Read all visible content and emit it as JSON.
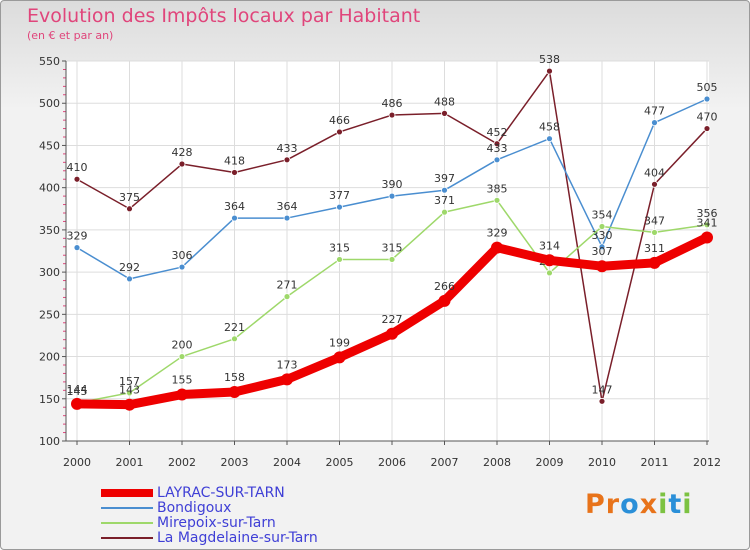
{
  "chart_data": {
    "type": "line",
    "title": "Evolution des Impôts locaux par Habitant",
    "subtitle": "(en € et par an)",
    "xlabel": "",
    "ylabel": "",
    "categories": [
      "2000",
      "2001",
      "2002",
      "2003",
      "2004",
      "2005",
      "2006",
      "2007",
      "2008",
      "2009",
      "2010",
      "2011",
      "2012"
    ],
    "ylim": [
      100,
      550
    ],
    "yticks": [
      100,
      150,
      200,
      250,
      300,
      350,
      400,
      450,
      500,
      550
    ],
    "grid": true,
    "series": [
      {
        "name": "La Magdelaine-sur-Tarn",
        "color": "#7a1f2a",
        "values": [
          410,
          375,
          428,
          418,
          433,
          466,
          486,
          488,
          452,
          538,
          147,
          404,
          470
        ]
      },
      {
        "name": "Bondigoux",
        "color": "#4a8ed0",
        "values": [
          329,
          292,
          306,
          364,
          364,
          377,
          390,
          397,
          433,
          458,
          330,
          477,
          505
        ]
      },
      {
        "name": "Mirepoix-sur-Tarn",
        "color": "#9ed86a",
        "values": [
          145,
          157,
          200,
          221,
          271,
          315,
          315,
          371,
          385,
          299,
          354,
          347,
          356
        ]
      },
      {
        "name": "LAYRAC-SUR-TARN",
        "color": "#ee0000",
        "values": [
          144,
          143,
          155,
          158,
          173,
          199,
          227,
          266,
          329,
          314,
          307,
          311,
          341
        ]
      }
    ]
  },
  "legend": [
    {
      "label": "LAYRAC-SUR-TARN",
      "color": "#ee0000",
      "thick": 8
    },
    {
      "label": "Bondigoux",
      "color": "#4a8ed0",
      "thick": 2
    },
    {
      "label": "Mirepoix-sur-Tarn",
      "color": "#9ed86a",
      "thick": 2
    },
    {
      "label": "La Magdelaine-sur-Tarn",
      "color": "#7a1f2a",
      "thick": 2
    }
  ],
  "logo": {
    "text": "Proxiti",
    "letters": [
      "P",
      "r",
      "o",
      "x",
      "i",
      "t",
      "i"
    ],
    "colors": [
      "#e8731a",
      "#e8731a",
      "#2a8fd8",
      "#e8731a",
      "#7cc242",
      "#2a8fd8",
      "#7cc242"
    ]
  }
}
